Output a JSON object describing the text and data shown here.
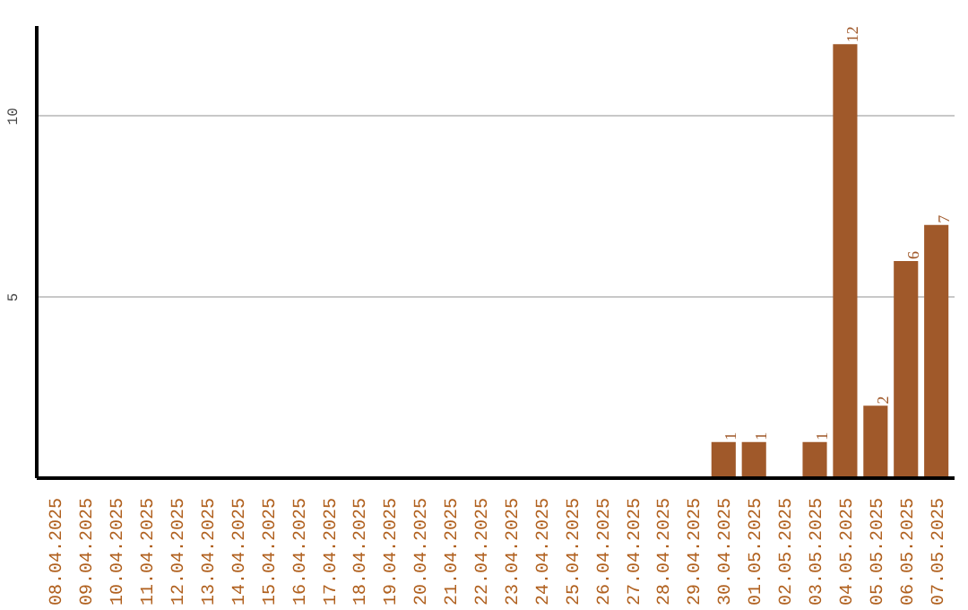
{
  "chart_data": {
    "type": "bar",
    "categories": [
      "08.04.2025",
      "09.04.2025",
      "10.04.2025",
      "11.04.2025",
      "12.04.2025",
      "13.04.2025",
      "14.04.2025",
      "15.04.2025",
      "16.04.2025",
      "17.04.2025",
      "18.04.2025",
      "19.04.2025",
      "20.04.2025",
      "21.04.2025",
      "22.04.2025",
      "23.04.2025",
      "24.04.2025",
      "25.04.2025",
      "26.04.2025",
      "27.04.2025",
      "28.04.2025",
      "29.04.2025",
      "30.04.2025",
      "01.05.2025",
      "02.05.2025",
      "03.05.2025",
      "04.05.2025",
      "05.05.2025",
      "06.05.2025",
      "07.05.2025"
    ],
    "values": [
      0,
      0,
      0,
      0,
      0,
      0,
      0,
      0,
      0,
      0,
      0,
      0,
      0,
      0,
      0,
      0,
      0,
      0,
      0,
      0,
      0,
      0,
      1,
      1,
      0,
      1,
      12,
      2,
      6,
      7
    ],
    "value_labels": [
      null,
      null,
      null,
      null,
      null,
      null,
      null,
      null,
      null,
      null,
      null,
      null,
      null,
      null,
      null,
      null,
      null,
      null,
      null,
      null,
      null,
      null,
      "1",
      "1",
      null,
      "1",
      "12",
      "2",
      "6",
      "7"
    ],
    "color": "#a0592a",
    "ylim": [
      0,
      12.5
    ],
    "yticks": [
      5,
      10
    ],
    "grid": "y"
  }
}
